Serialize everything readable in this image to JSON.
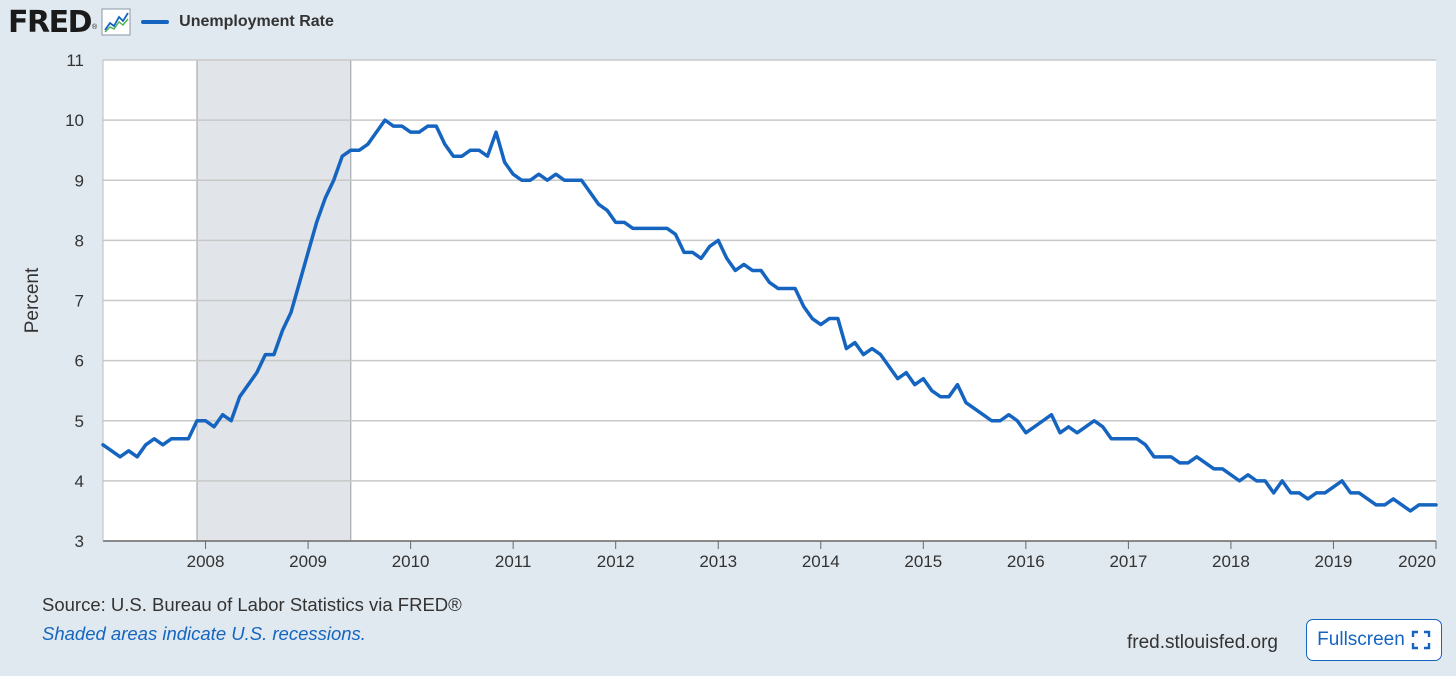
{
  "header": {
    "logo": "FRED",
    "logo_mark": "®",
    "logo_icon": "line-chart-icon",
    "legend_label": "Unemployment Rate"
  },
  "footer": {
    "source": "Source: U.S. Bureau of Labor Statistics via FRED®",
    "note": "Shaded areas indicate U.S. recessions.",
    "url": "fred.stlouisfed.org",
    "fullscreen_label": "Fullscreen",
    "fullscreen_icon": "expand-icon"
  },
  "colors": {
    "line": "#1565c0",
    "recession": "#e1e4e8",
    "grid": "#c8c8c8",
    "background": "#e1e9f0",
    "plot_background": "#ffffff"
  },
  "chart_data": {
    "type": "line",
    "title": "",
    "ylabel": "Percent",
    "xlabel": "",
    "ylim": [
      3,
      11
    ],
    "yticks": [
      "3",
      "4",
      "5",
      "6",
      "7",
      "8",
      "9",
      "10",
      "11"
    ],
    "xlim": [
      "2007-01",
      "2020-01"
    ],
    "xticks": [
      "2008",
      "2009",
      "2010",
      "2011",
      "2012",
      "2013",
      "2014",
      "2015",
      "2016",
      "2017",
      "2018",
      "2019",
      "2020"
    ],
    "grid": true,
    "legend": "top-left",
    "recessions": [
      {
        "start": "2007-12",
        "end": "2009-06"
      }
    ],
    "series": [
      {
        "name": "Unemployment Rate",
        "x_start": "2007-01",
        "frequency": "monthly",
        "values": [
          4.6,
          4.5,
          4.4,
          4.5,
          4.4,
          4.6,
          4.7,
          4.6,
          4.7,
          4.7,
          4.7,
          5.0,
          5.0,
          4.9,
          5.1,
          5.0,
          5.4,
          5.6,
          5.8,
          6.1,
          6.1,
          6.5,
          6.8,
          7.3,
          7.8,
          8.3,
          8.7,
          9.0,
          9.4,
          9.5,
          9.5,
          9.6,
          9.8,
          10.0,
          9.9,
          9.9,
          9.8,
          9.8,
          9.9,
          9.9,
          9.6,
          9.4,
          9.4,
          9.5,
          9.5,
          9.4,
          9.8,
          9.3,
          9.1,
          9.0,
          9.0,
          9.1,
          9.0,
          9.1,
          9.0,
          9.0,
          9.0,
          8.8,
          8.6,
          8.5,
          8.3,
          8.3,
          8.2,
          8.2,
          8.2,
          8.2,
          8.2,
          8.1,
          7.8,
          7.8,
          7.7,
          7.9,
          8.0,
          7.7,
          7.5,
          7.6,
          7.5,
          7.5,
          7.3,
          7.2,
          7.2,
          7.2,
          6.9,
          6.7,
          6.6,
          6.7,
          6.7,
          6.2,
          6.3,
          6.1,
          6.2,
          6.1,
          5.9,
          5.7,
          5.8,
          5.6,
          5.7,
          5.5,
          5.4,
          5.4,
          5.6,
          5.3,
          5.2,
          5.1,
          5.0,
          5.0,
          5.1,
          5.0,
          4.8,
          4.9,
          5.0,
          5.1,
          4.8,
          4.9,
          4.8,
          4.9,
          5.0,
          4.9,
          4.7,
          4.7,
          4.7,
          4.7,
          4.6,
          4.4,
          4.4,
          4.4,
          4.3,
          4.3,
          4.4,
          4.3,
          4.2,
          4.2,
          4.1,
          4.0,
          4.1,
          4.0,
          4.0,
          3.8,
          4.0,
          3.8,
          3.8,
          3.7,
          3.8,
          3.8,
          3.9,
          4.0,
          3.8,
          3.8,
          3.7,
          3.6,
          3.6,
          3.7,
          3.6,
          3.5,
          3.6,
          3.6,
          3.6
        ]
      }
    ]
  }
}
